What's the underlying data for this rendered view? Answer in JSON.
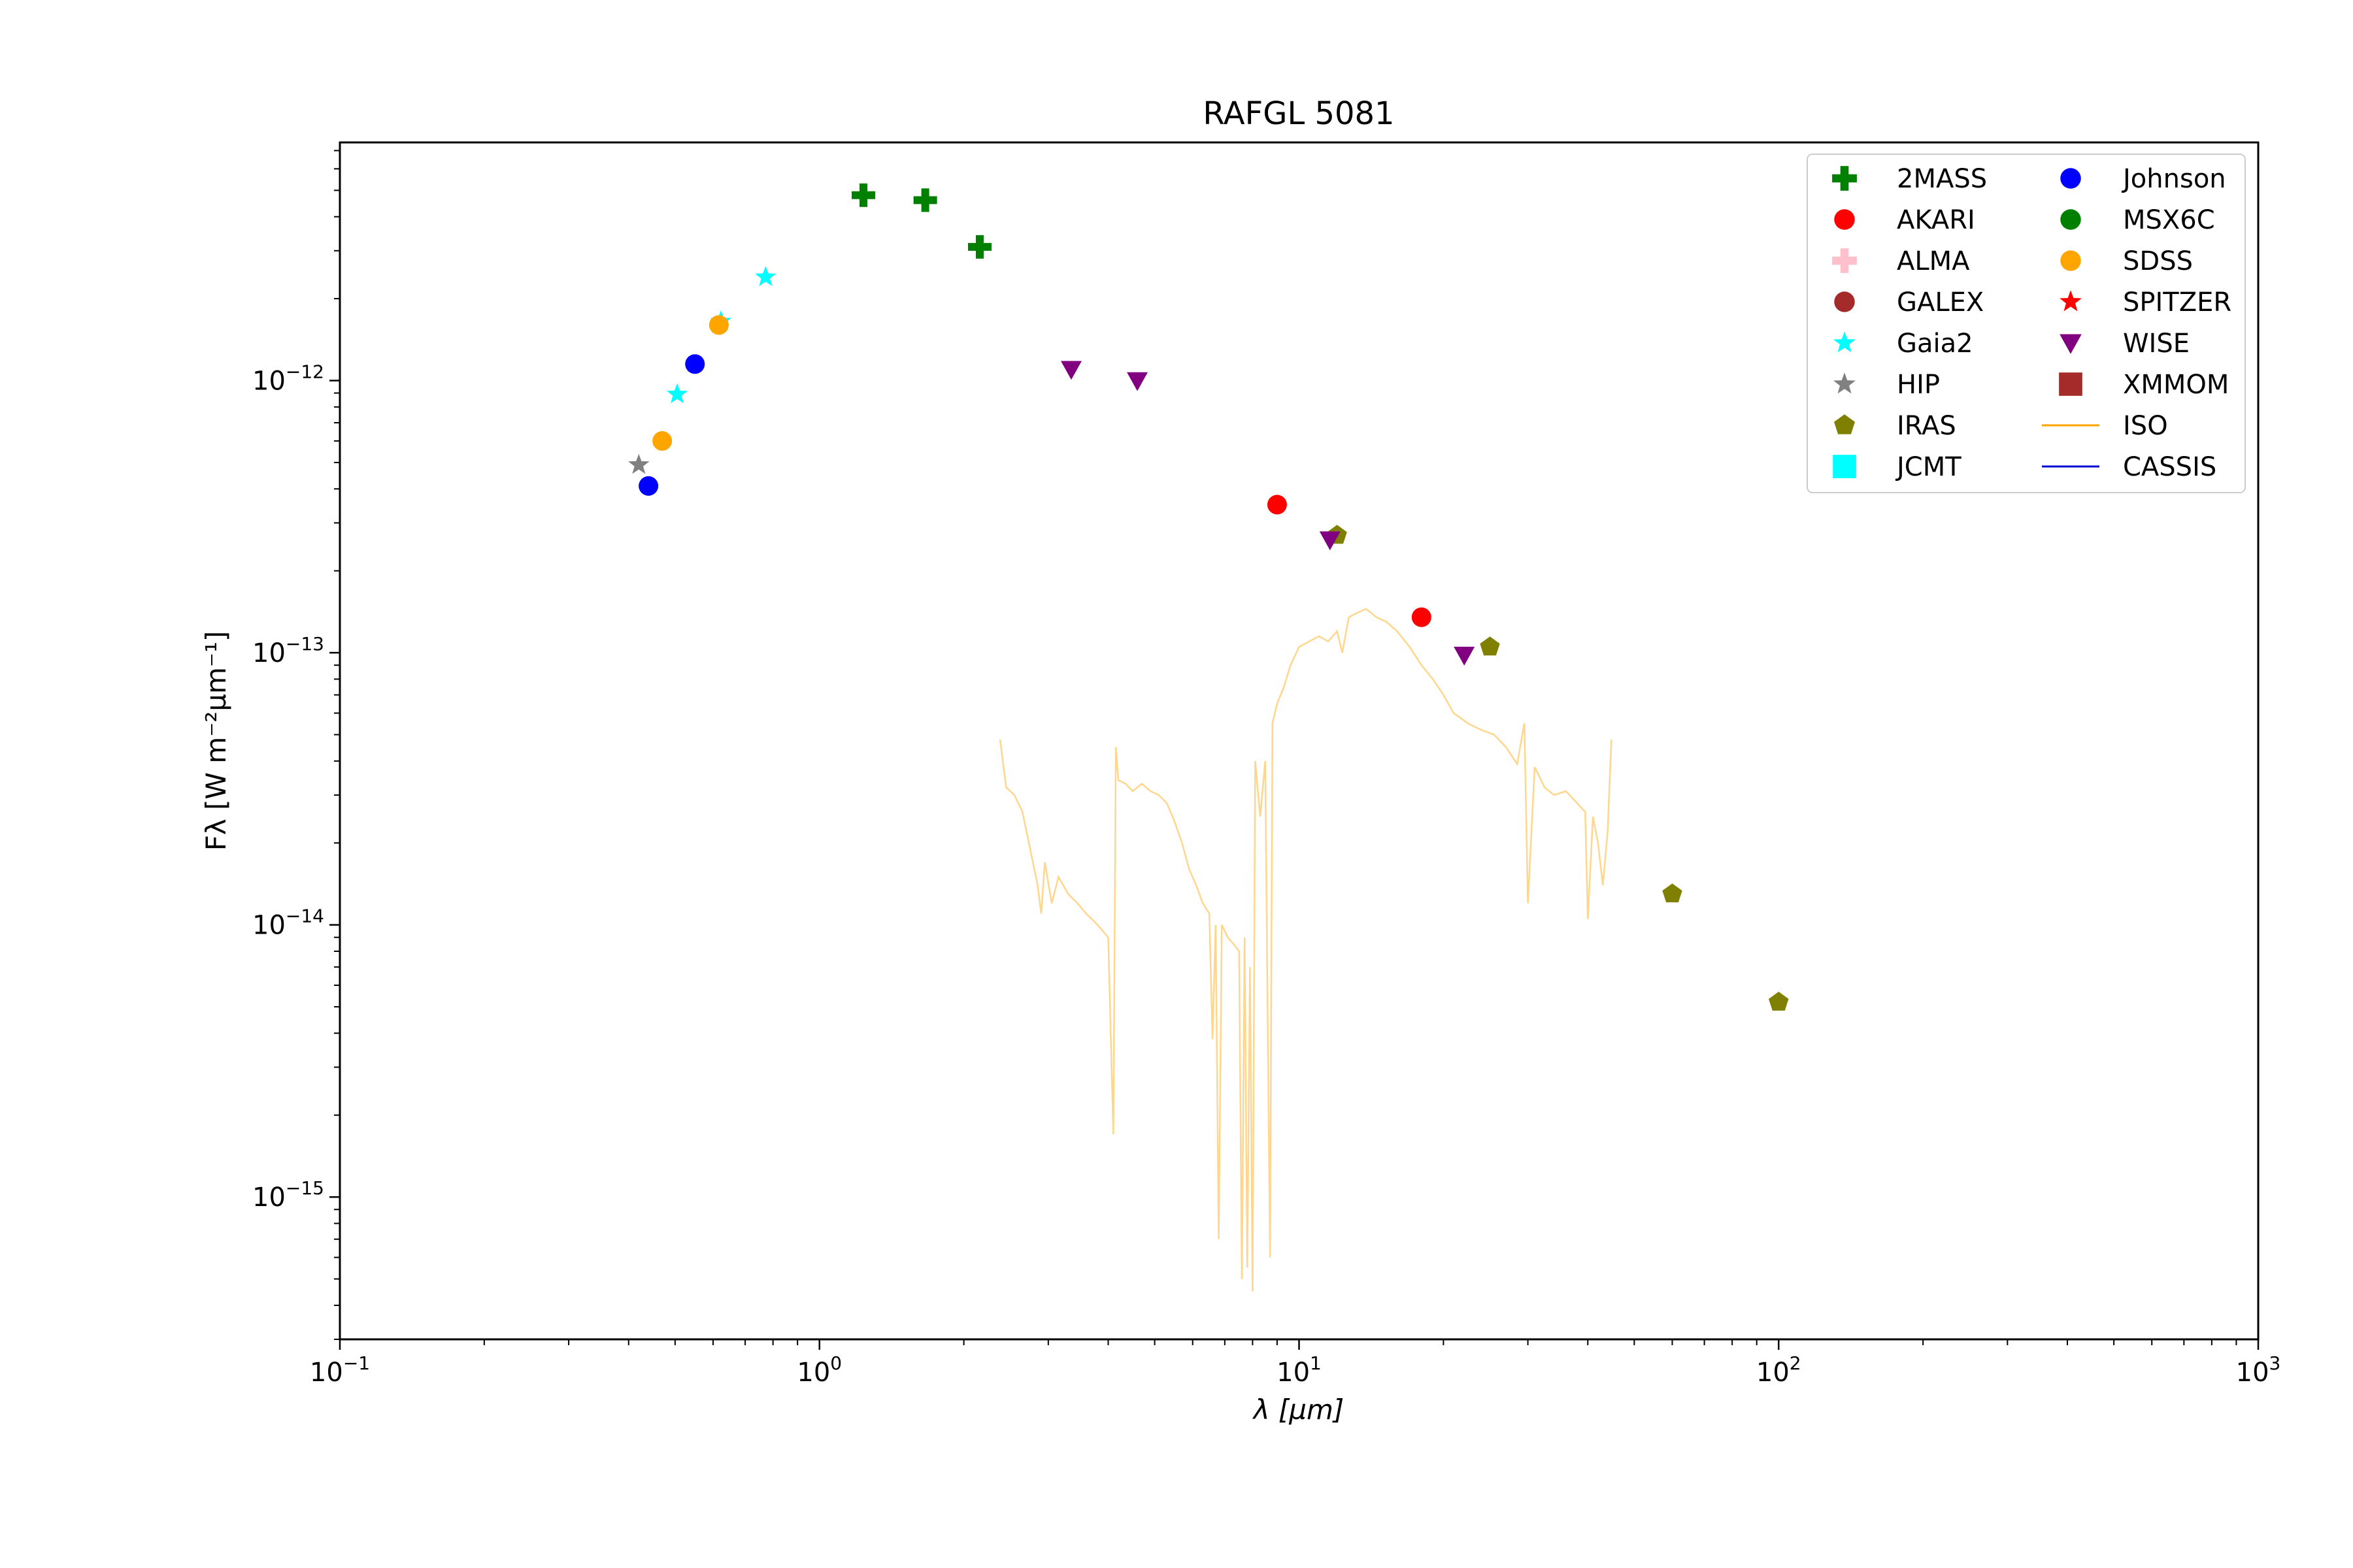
{
  "chart_data": {
    "type": "scatter",
    "title": "RAFGL 5081",
    "xlabel": "λ [μm]",
    "ylabel": "Fλ [W m⁻²μm⁻¹]",
    "xscale": "log",
    "yscale": "log",
    "xlim": [
      0.1,
      1000
    ],
    "ylim": [
      3e-16,
      7.5e-12
    ],
    "x_ticks": [
      {
        "base": "10",
        "exp": "−1",
        "value": 0.1
      },
      {
        "base": "10",
        "exp": "0",
        "value": 1
      },
      {
        "base": "10",
        "exp": "1",
        "value": 10
      },
      {
        "base": "10",
        "exp": "2",
        "value": 100
      },
      {
        "base": "10",
        "exp": "3",
        "value": 1000
      }
    ],
    "y_ticks": [
      {
        "base": "10",
        "exp": "−15",
        "value": 1e-15
      },
      {
        "base": "10",
        "exp": "−14",
        "value": 1e-14
      },
      {
        "base": "10",
        "exp": "−13",
        "value": 1e-13
      },
      {
        "base": "10",
        "exp": "−12",
        "value": 1e-12
      }
    ],
    "grid": false,
    "legend_position": "top-right",
    "legend": [
      {
        "name": "2MASS",
        "marker": "plus",
        "color": "#008000"
      },
      {
        "name": "AKARI",
        "marker": "circle",
        "color": "#ff0000"
      },
      {
        "name": "ALMA",
        "marker": "plus",
        "color": "#ffc0cb"
      },
      {
        "name": "GALEX",
        "marker": "circle",
        "color": "#a52a2a"
      },
      {
        "name": "Gaia2",
        "marker": "star",
        "color": "#00ffff"
      },
      {
        "name": "HIP",
        "marker": "star",
        "color": "#808080"
      },
      {
        "name": "IRAS",
        "marker": "pentagon",
        "color": "#808000"
      },
      {
        "name": "JCMT",
        "marker": "square",
        "color": "#00ffff"
      },
      {
        "name": "Johnson",
        "marker": "circle",
        "color": "#0000ff"
      },
      {
        "name": "MSX6C",
        "marker": "circle",
        "color": "#008000"
      },
      {
        "name": "SDSS",
        "marker": "circle",
        "color": "#ffa500"
      },
      {
        "name": "SPITZER",
        "marker": "star",
        "color": "#ff0000"
      },
      {
        "name": "WISE",
        "marker": "triangle-down",
        "color": "#800080"
      },
      {
        "name": "XMMOM",
        "marker": "square",
        "color": "#a52a2a"
      },
      {
        "name": "ISO",
        "marker": "line",
        "color": "#ffa500"
      },
      {
        "name": "CASSIS",
        "marker": "line",
        "color": "#0000cd"
      }
    ],
    "series": [
      {
        "name": "2MASS",
        "marker": "plus",
        "color": "#008000",
        "points": [
          [
            1.235,
            4.8e-12
          ],
          [
            1.662,
            4.6e-12
          ],
          [
            2.159,
            3.1e-12
          ]
        ]
      },
      {
        "name": "AKARI",
        "marker": "circle",
        "color": "#ff0000",
        "points": [
          [
            9.0,
            3.5e-13
          ],
          [
            18.0,
            1.35e-13
          ]
        ]
      },
      {
        "name": "Gaia2",
        "marker": "star",
        "color": "#00ffff",
        "points": [
          [
            0.505,
            8.9e-13
          ],
          [
            0.623,
            1.65e-12
          ],
          [
            0.772,
            2.4e-12
          ]
        ]
      },
      {
        "name": "HIP",
        "marker": "star",
        "color": "#808080",
        "points": [
          [
            0.42,
            4.9e-13
          ]
        ]
      },
      {
        "name": "IRAS",
        "marker": "pentagon",
        "color": "#808000",
        "points": [
          [
            12,
            2.7e-13
          ],
          [
            25,
            1.05e-13
          ],
          [
            60,
            1.3e-14
          ],
          [
            100,
            5.2e-15
          ]
        ]
      },
      {
        "name": "Johnson",
        "marker": "circle",
        "color": "#0000ff",
        "points": [
          [
            0.44,
            4.1e-13
          ],
          [
            0.55,
            1.15e-12
          ]
        ]
      },
      {
        "name": "SDSS",
        "marker": "circle",
        "color": "#ffa500",
        "points": [
          [
            0.47,
            6e-13
          ],
          [
            0.617,
            1.6e-12
          ]
        ]
      },
      {
        "name": "WISE",
        "marker": "triangle-down",
        "color": "#800080",
        "points": [
          [
            3.35,
            1.1e-12
          ],
          [
            4.6,
            1e-12
          ],
          [
            11.6,
            2.6e-13
          ],
          [
            22.1,
            9.8e-14
          ]
        ]
      },
      {
        "name": "ISO",
        "marker": "line",
        "color": "#ffa500",
        "alpha": 0.45,
        "points": [
          [
            2.38,
            4.8e-14
          ],
          [
            2.45,
            3.2e-14
          ],
          [
            2.55,
            3e-14
          ],
          [
            2.65,
            2.6e-14
          ],
          [
            2.75,
            1.9e-14
          ],
          [
            2.85,
            1.4e-14
          ],
          [
            2.9,
            1.1e-14
          ],
          [
            2.95,
            1.7e-14
          ],
          [
            3.05,
            1.2e-14
          ],
          [
            3.15,
            1.5e-14
          ],
          [
            3.3,
            1.3e-14
          ],
          [
            3.45,
            1.2e-14
          ],
          [
            3.6,
            1.1e-14
          ],
          [
            3.8,
            1e-14
          ],
          [
            4.0,
            9e-15
          ],
          [
            4.1,
            1.7e-15
          ],
          [
            4.15,
            4.5e-14
          ],
          [
            4.2,
            3.4e-14
          ],
          [
            4.35,
            3.3e-14
          ],
          [
            4.5,
            3.1e-14
          ],
          [
            4.7,
            3.3e-14
          ],
          [
            4.9,
            3.1e-14
          ],
          [
            5.1,
            3e-14
          ],
          [
            5.3,
            2.8e-14
          ],
          [
            5.5,
            2.4e-14
          ],
          [
            5.7,
            2e-14
          ],
          [
            5.9,
            1.6e-14
          ],
          [
            6.1,
            1.4e-14
          ],
          [
            6.3,
            1.2e-14
          ],
          [
            6.5,
            1.1e-14
          ],
          [
            6.6,
            3.8e-15
          ],
          [
            6.7,
            1e-14
          ],
          [
            6.8,
            7e-16
          ],
          [
            6.9,
            1e-14
          ],
          [
            7.1,
            9e-15
          ],
          [
            7.3,
            8.5e-15
          ],
          [
            7.5,
            8e-15
          ],
          [
            7.6,
            5e-16
          ],
          [
            7.7,
            9e-15
          ],
          [
            7.8,
            5.5e-16
          ],
          [
            7.9,
            7e-15
          ],
          [
            8.0,
            4.5e-16
          ],
          [
            8.1,
            4e-14
          ],
          [
            8.3,
            2.5e-14
          ],
          [
            8.5,
            4e-14
          ],
          [
            8.7,
            6e-16
          ],
          [
            8.8,
            5.5e-14
          ],
          [
            9.0,
            6.5e-14
          ],
          [
            9.3,
            7.5e-14
          ],
          [
            9.6,
            9e-14
          ],
          [
            10.0,
            1.05e-13
          ],
          [
            10.5,
            1.1e-13
          ],
          [
            11.0,
            1.15e-13
          ],
          [
            11.5,
            1.1e-13
          ],
          [
            12.0,
            1.2e-13
          ],
          [
            12.3,
            1e-13
          ],
          [
            12.7,
            1.35e-13
          ],
          [
            13.2,
            1.4e-13
          ],
          [
            13.8,
            1.45e-13
          ],
          [
            14.5,
            1.35e-13
          ],
          [
            15.2,
            1.3e-13
          ],
          [
            16.0,
            1.2e-13
          ],
          [
            17.0,
            1.05e-13
          ],
          [
            18.0,
            9e-14
          ],
          [
            19.0,
            8e-14
          ],
          [
            20.0,
            7e-14
          ],
          [
            21.0,
            6e-14
          ],
          [
            22.5,
            5.5e-14
          ],
          [
            24.0,
            5.2e-14
          ],
          [
            25.5,
            5e-14
          ],
          [
            27.0,
            4.5e-14
          ],
          [
            28.5,
            3.9e-14
          ],
          [
            29.5,
            5.5e-14
          ],
          [
            30.0,
            1.2e-14
          ],
          [
            31.0,
            3.8e-14
          ],
          [
            32.5,
            3.2e-14
          ],
          [
            34.0,
            3e-14
          ],
          [
            36.0,
            3.1e-14
          ],
          [
            38.0,
            2.8e-14
          ],
          [
            39.5,
            2.6e-14
          ],
          [
            40.0,
            1.05e-14
          ],
          [
            41.0,
            2.5e-14
          ],
          [
            42.0,
            2e-14
          ],
          [
            43.0,
            1.4e-14
          ],
          [
            44.0,
            2.2e-14
          ],
          [
            44.8,
            4.8e-14
          ]
        ]
      }
    ]
  }
}
